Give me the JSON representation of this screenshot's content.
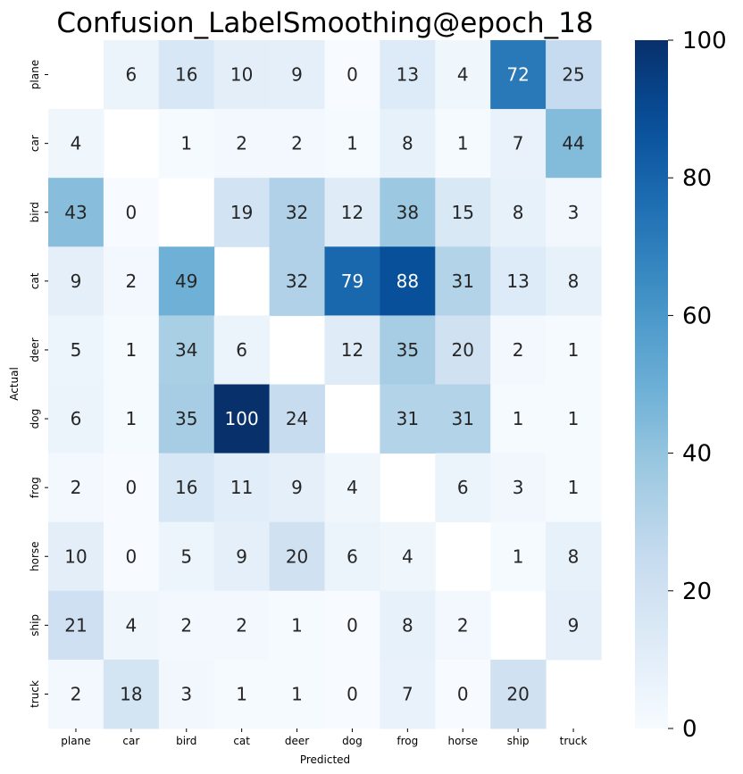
{
  "chart_data": {
    "type": "heatmap",
    "title": "Confusion_LabelSmoothing@epoch_18",
    "xlabel": "Predicted",
    "ylabel": "Actual",
    "x_categories": [
      "plane",
      "car",
      "bird",
      "cat",
      "deer",
      "dog",
      "frog",
      "horse",
      "ship",
      "truck"
    ],
    "y_categories": [
      "plane",
      "car",
      "bird",
      "cat",
      "deer",
      "dog",
      "frog",
      "horse",
      "ship",
      "truck"
    ],
    "values": [
      [
        null,
        6,
        16,
        10,
        9,
        0,
        13,
        4,
        72,
        25
      ],
      [
        4,
        null,
        1,
        2,
        2,
        1,
        8,
        1,
        7,
        44
      ],
      [
        43,
        0,
        null,
        19,
        32,
        12,
        38,
        15,
        8,
        3
      ],
      [
        9,
        2,
        49,
        null,
        32,
        79,
        88,
        31,
        13,
        8
      ],
      [
        5,
        1,
        34,
        6,
        null,
        12,
        35,
        20,
        2,
        1
      ],
      [
        6,
        1,
        35,
        100,
        24,
        null,
        31,
        31,
        1,
        1
      ],
      [
        2,
        0,
        16,
        11,
        9,
        4,
        null,
        6,
        3,
        1
      ],
      [
        10,
        0,
        5,
        9,
        20,
        6,
        4,
        null,
        1,
        8
      ],
      [
        21,
        4,
        2,
        2,
        1,
        0,
        8,
        2,
        null,
        9
      ],
      [
        2,
        18,
        3,
        1,
        1,
        0,
        7,
        0,
        20,
        null
      ]
    ],
    "colormap": "Blues",
    "vmin": 0,
    "vmax": 100,
    "colorbar_ticks": [
      0,
      20,
      40,
      60,
      80,
      100
    ],
    "grid": false
  }
}
